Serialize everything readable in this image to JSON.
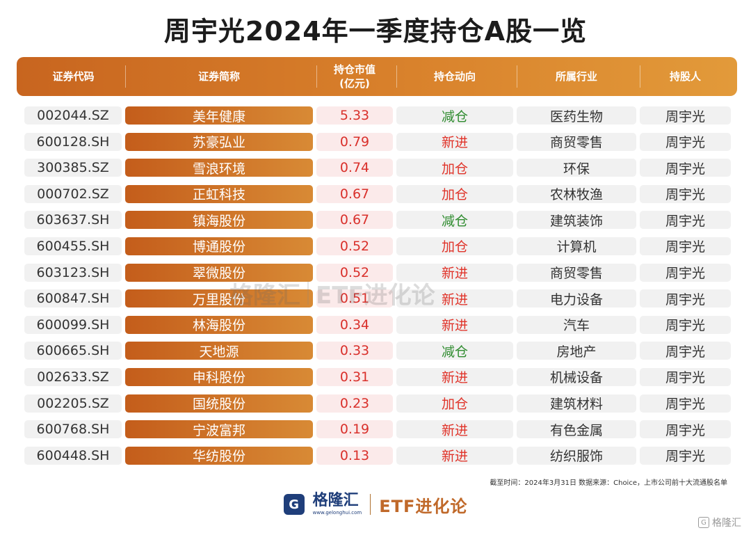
{
  "title": "周宇光2024年一季度持仓A股一览",
  "header": {
    "code": "证券代码",
    "name": "证券简称",
    "value_line1": "持仓市值",
    "value_line2": "(亿元)",
    "move": "持仓动向",
    "industry": "所属行业",
    "holder": "持股人"
  },
  "rows": [
    {
      "code": "002044.SZ",
      "name": "美年健康",
      "value": "5.33",
      "move": "减仓",
      "industry": "医药生物",
      "holder": "周宇光"
    },
    {
      "code": "600128.SH",
      "name": "苏豪弘业",
      "value": "0.79",
      "move": "新进",
      "industry": "商贸零售",
      "holder": "周宇光"
    },
    {
      "code": "300385.SZ",
      "name": "雪浪环境",
      "value": "0.74",
      "move": "加仓",
      "industry": "环保",
      "holder": "周宇光"
    },
    {
      "code": "000702.SZ",
      "name": "正虹科技",
      "value": "0.67",
      "move": "加仓",
      "industry": "农林牧渔",
      "holder": "周宇光"
    },
    {
      "code": "603637.SH",
      "name": "镇海股份",
      "value": "0.67",
      "move": "减仓",
      "industry": "建筑装饰",
      "holder": "周宇光"
    },
    {
      "code": "600455.SH",
      "name": "博通股份",
      "value": "0.52",
      "move": "加仓",
      "industry": "计算机",
      "holder": "周宇光"
    },
    {
      "code": "603123.SH",
      "name": "翠微股份",
      "value": "0.52",
      "move": "新进",
      "industry": "商贸零售",
      "holder": "周宇光"
    },
    {
      "code": "600847.SH",
      "name": "万里股份",
      "value": "0.51",
      "move": "新进",
      "industry": "电力设备",
      "holder": "周宇光"
    },
    {
      "code": "600099.SH",
      "name": "林海股份",
      "value": "0.34",
      "move": "新进",
      "industry": "汽车",
      "holder": "周宇光"
    },
    {
      "code": "600665.SH",
      "name": "天地源",
      "value": "0.33",
      "move": "减仓",
      "industry": "房地产",
      "holder": "周宇光"
    },
    {
      "code": "002633.SZ",
      "name": "申科股份",
      "value": "0.31",
      "move": "新进",
      "industry": "机械设备",
      "holder": "周宇光"
    },
    {
      "code": "002205.SZ",
      "name": "国统股份",
      "value": "0.23",
      "move": "加仓",
      "industry": "建筑材料",
      "holder": "周宇光"
    },
    {
      "code": "600768.SH",
      "name": "宁波富邦",
      "value": "0.19",
      "move": "新进",
      "industry": "有色金属",
      "holder": "周宇光"
    },
    {
      "code": "600448.SH",
      "name": "华纺股份",
      "value": "0.13",
      "move": "新进",
      "industry": "纺织服饰",
      "holder": "周宇光"
    }
  ],
  "footnote": "截至时间：2024年3月31日 数据来源：Choice，上市公司前十大流通股名单",
  "footer": {
    "logo_letter": "G",
    "logo_name": "格隆汇",
    "logo_url": "www.gelonghui.com",
    "brand": "ETF进化论"
  },
  "watermark": {
    "name": "格隆汇",
    "brand": "ETF进化论"
  },
  "corner_badge": "格隆汇",
  "colors": {
    "accent_orange": "#d9822c",
    "value_red": "#d9302b",
    "move_increase": "#e03329",
    "move_decrease": "#2e8b2e"
  }
}
